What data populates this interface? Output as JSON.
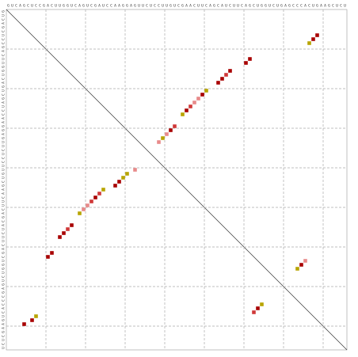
{
  "chart_data": {
    "type": "dotplot",
    "sequence": "GUCAGCUCCGACUUGGUCAGUCGAUCCAAGGAGUUCUCCUUGUCGAACUUCAGCAUCUUCAGCUGGUCUGAGCCCACUGAAGCUCU",
    "xlim": [
      0,
      86
    ],
    "ylim": [
      0,
      86
    ],
    "xticks": [
      10,
      20,
      30,
      40,
      50,
      60,
      70,
      80
    ],
    "yticks": [
      10,
      20,
      30,
      40,
      50,
      60,
      70,
      80
    ],
    "grid": true,
    "series": [
      {
        "color": "#a80000",
        "x": [
          5,
          7,
          11,
          12,
          14,
          15,
          17,
          23,
          28,
          29,
          42,
          46,
          50,
          54,
          55,
          57,
          61,
          62,
          78,
          79,
          75,
          64
        ],
        "y": [
          80,
          79,
          63,
          62,
          58,
          57,
          55,
          48,
          45,
          44,
          31,
          26,
          22,
          19,
          18,
          16,
          14,
          13,
          8,
          7,
          65,
          76
        ]
      },
      {
        "color": "#d03838",
        "x": [
          16,
          22,
          24,
          43,
          47,
          56,
          63
        ],
        "y": [
          56,
          49,
          47,
          30,
          25,
          17,
          77
        ]
      },
      {
        "color": "#e88a8a",
        "x": [
          20,
          21,
          33,
          39,
          41,
          48,
          49,
          76
        ],
        "y": [
          51,
          50,
          41,
          34,
          32,
          24,
          23,
          64
        ]
      },
      {
        "color": "#b8a400",
        "x": [
          8,
          19,
          25,
          30,
          31,
          40,
          45,
          51,
          77,
          74,
          65
        ],
        "y": [
          78,
          52,
          46,
          43,
          42,
          33,
          27,
          21,
          9,
          66,
          75
        ]
      }
    ]
  }
}
